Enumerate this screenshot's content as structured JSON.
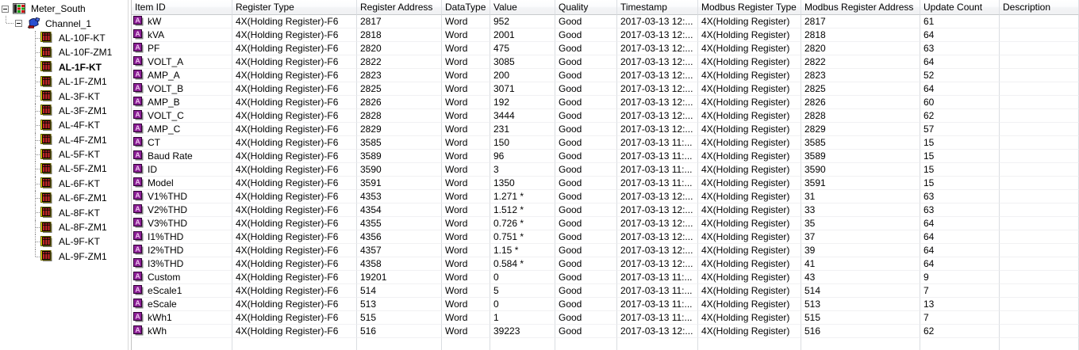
{
  "tree": {
    "items": [
      {
        "label": "Meter_South",
        "icon": "server-icon",
        "level": 0,
        "expandable": true,
        "expanded": true,
        "bold": false
      },
      {
        "label": "Channel_1",
        "icon": "channel-icon",
        "level": 1,
        "expandable": true,
        "expanded": true,
        "bold": false
      },
      {
        "label": "AL-10F-KT",
        "icon": "device-icon",
        "level": 2,
        "bold": false
      },
      {
        "label": "AL-10F-ZM1",
        "icon": "device-icon",
        "level": 2,
        "bold": false
      },
      {
        "label": "AL-1F-KT",
        "icon": "device-icon",
        "level": 2,
        "bold": true
      },
      {
        "label": "AL-1F-ZM1",
        "icon": "device-icon",
        "level": 2,
        "bold": false
      },
      {
        "label": "AL-3F-KT",
        "icon": "device-icon",
        "level": 2,
        "bold": false
      },
      {
        "label": "AL-3F-ZM1",
        "icon": "device-icon",
        "level": 2,
        "bold": false
      },
      {
        "label": "AL-4F-KT",
        "icon": "device-icon",
        "level": 2,
        "bold": false
      },
      {
        "label": "AL-4F-ZM1",
        "icon": "device-icon",
        "level": 2,
        "bold": false
      },
      {
        "label": "AL-5F-KT",
        "icon": "device-icon",
        "level": 2,
        "bold": false
      },
      {
        "label": "AL-5F-ZM1",
        "icon": "device-icon",
        "level": 2,
        "bold": false
      },
      {
        "label": "AL-6F-KT",
        "icon": "device-icon",
        "level": 2,
        "bold": false
      },
      {
        "label": "AL-6F-ZM1",
        "icon": "device-icon",
        "level": 2,
        "bold": false
      },
      {
        "label": "AL-8F-KT",
        "icon": "device-icon",
        "level": 2,
        "bold": false
      },
      {
        "label": "AL-8F-ZM1",
        "icon": "device-icon",
        "level": 2,
        "bold": false
      },
      {
        "label": "AL-9F-KT",
        "icon": "device-icon",
        "level": 2,
        "bold": false
      },
      {
        "label": "AL-9F-ZM1",
        "icon": "device-icon",
        "level": 2,
        "bold": false
      }
    ]
  },
  "table": {
    "columns": [
      {
        "label": "Item ID",
        "width": 127
      },
      {
        "label": "Register Type",
        "width": 157
      },
      {
        "label": "Register Address",
        "width": 107
      },
      {
        "label": "DataType",
        "width": 61
      },
      {
        "label": "Value",
        "width": 82
      },
      {
        "label": "Quality",
        "width": 78
      },
      {
        "label": "Timestamp",
        "width": 102
      },
      {
        "label": "Modbus Register Type",
        "width": 130
      },
      {
        "label": "Modbus Register Address",
        "width": 150
      },
      {
        "label": "Update Count",
        "width": 100
      },
      {
        "label": "Description",
        "width": 100
      }
    ],
    "rows": [
      [
        "kW",
        "4X(Holding Register)-F6",
        "2817",
        "Word",
        "952",
        "Good",
        "2017-03-13 12:...",
        "4X(Holding Register)",
        "2817",
        "61",
        ""
      ],
      [
        "kVA",
        "4X(Holding Register)-F6",
        "2818",
        "Word",
        "2001",
        "Good",
        "2017-03-13 12:...",
        "4X(Holding Register)",
        "2818",
        "64",
        ""
      ],
      [
        "PF",
        "4X(Holding Register)-F6",
        "2820",
        "Word",
        "475",
        "Good",
        "2017-03-13 12:...",
        "4X(Holding Register)",
        "2820",
        "63",
        ""
      ],
      [
        "VOLT_A",
        "4X(Holding Register)-F6",
        "2822",
        "Word",
        "3085",
        "Good",
        "2017-03-13 12:...",
        "4X(Holding Register)",
        "2822",
        "64",
        ""
      ],
      [
        "AMP_A",
        "4X(Holding Register)-F6",
        "2823",
        "Word",
        "200",
        "Good",
        "2017-03-13 12:...",
        "4X(Holding Register)",
        "2823",
        "52",
        ""
      ],
      [
        "VOLT_B",
        "4X(Holding Register)-F6",
        "2825",
        "Word",
        "3071",
        "Good",
        "2017-03-13 12:...",
        "4X(Holding Register)",
        "2825",
        "64",
        ""
      ],
      [
        "AMP_B",
        "4X(Holding Register)-F6",
        "2826",
        "Word",
        "192",
        "Good",
        "2017-03-13 12:...",
        "4X(Holding Register)",
        "2826",
        "60",
        ""
      ],
      [
        "VOLT_C",
        "4X(Holding Register)-F6",
        "2828",
        "Word",
        "3444",
        "Good",
        "2017-03-13 12:...",
        "4X(Holding Register)",
        "2828",
        "62",
        ""
      ],
      [
        "AMP_C",
        "4X(Holding Register)-F6",
        "2829",
        "Word",
        "231",
        "Good",
        "2017-03-13 12:...",
        "4X(Holding Register)",
        "2829",
        "57",
        ""
      ],
      [
        "CT",
        "4X(Holding Register)-F6",
        "3585",
        "Word",
        "150",
        "Good",
        "2017-03-13 11:...",
        "4X(Holding Register)",
        "3585",
        "15",
        ""
      ],
      [
        "Baud Rate",
        "4X(Holding Register)-F6",
        "3589",
        "Word",
        "96",
        "Good",
        "2017-03-13 11:...",
        "4X(Holding Register)",
        "3589",
        "15",
        ""
      ],
      [
        "ID",
        "4X(Holding Register)-F6",
        "3590",
        "Word",
        "3",
        "Good",
        "2017-03-13 11:...",
        "4X(Holding Register)",
        "3590",
        "15",
        ""
      ],
      [
        "Model",
        "4X(Holding Register)-F6",
        "3591",
        "Word",
        "1350",
        "Good",
        "2017-03-13 11:...",
        "4X(Holding Register)",
        "3591",
        "15",
        ""
      ],
      [
        "V1%THD",
        "4X(Holding Register)-F6",
        "4353",
        "Word",
        "1.271 *",
        "Good",
        "2017-03-13 12:...",
        "4X(Holding Register)",
        "31",
        "63",
        ""
      ],
      [
        "V2%THD",
        "4X(Holding Register)-F6",
        "4354",
        "Word",
        "1.512 *",
        "Good",
        "2017-03-13 12:...",
        "4X(Holding Register)",
        "33",
        "63",
        ""
      ],
      [
        "V3%THD",
        "4X(Holding Register)-F6",
        "4355",
        "Word",
        "0.726 *",
        "Good",
        "2017-03-13 12:...",
        "4X(Holding Register)",
        "35",
        "64",
        ""
      ],
      [
        "I1%THD",
        "4X(Holding Register)-F6",
        "4356",
        "Word",
        "0.751 *",
        "Good",
        "2017-03-13 12:...",
        "4X(Holding Register)",
        "37",
        "64",
        ""
      ],
      [
        "I2%THD",
        "4X(Holding Register)-F6",
        "4357",
        "Word",
        "1.15 *",
        "Good",
        "2017-03-13 12:...",
        "4X(Holding Register)",
        "39",
        "64",
        ""
      ],
      [
        "I3%THD",
        "4X(Holding Register)-F6",
        "4358",
        "Word",
        "0.584 *",
        "Good",
        "2017-03-13 12:...",
        "4X(Holding Register)",
        "41",
        "64",
        ""
      ],
      [
        "Custom",
        "4X(Holding Register)-F6",
        "19201",
        "Word",
        "0",
        "Good",
        "2017-03-13 11:...",
        "4X(Holding Register)",
        "43",
        "9",
        ""
      ],
      [
        "eScale1",
        "4X(Holding Register)-F6",
        "514",
        "Word",
        "5",
        "Good",
        "2017-03-13 11:...",
        "4X(Holding Register)",
        "514",
        "7",
        ""
      ],
      [
        "eScale",
        "4X(Holding Register)-F6",
        "513",
        "Word",
        "0",
        "Good",
        "2017-03-13 11:...",
        "4X(Holding Register)",
        "513",
        "13",
        ""
      ],
      [
        "kWh1",
        "4X(Holding Register)-F6",
        "515",
        "Word",
        "1",
        "Good",
        "2017-03-13 11:...",
        "4X(Holding Register)",
        "515",
        "7",
        ""
      ],
      [
        "kWh",
        "4X(Holding Register)-F6",
        "516",
        "Word",
        "39223",
        "Good",
        "2017-03-13 12:...",
        "4X(Holding Register)",
        "516",
        "62",
        ""
      ]
    ]
  },
  "colors": {
    "tag_icon_purple": "#8c1f96",
    "device_icon_yellow": "#f2e400",
    "device_icon_red": "#c62828",
    "status_green": "#18a818",
    "status_red": "#cc1616",
    "grid_vertical_line": "#dadde1",
    "grid_horizontal_line": "#f1f1f3",
    "header_border": "#c8cacc"
  }
}
